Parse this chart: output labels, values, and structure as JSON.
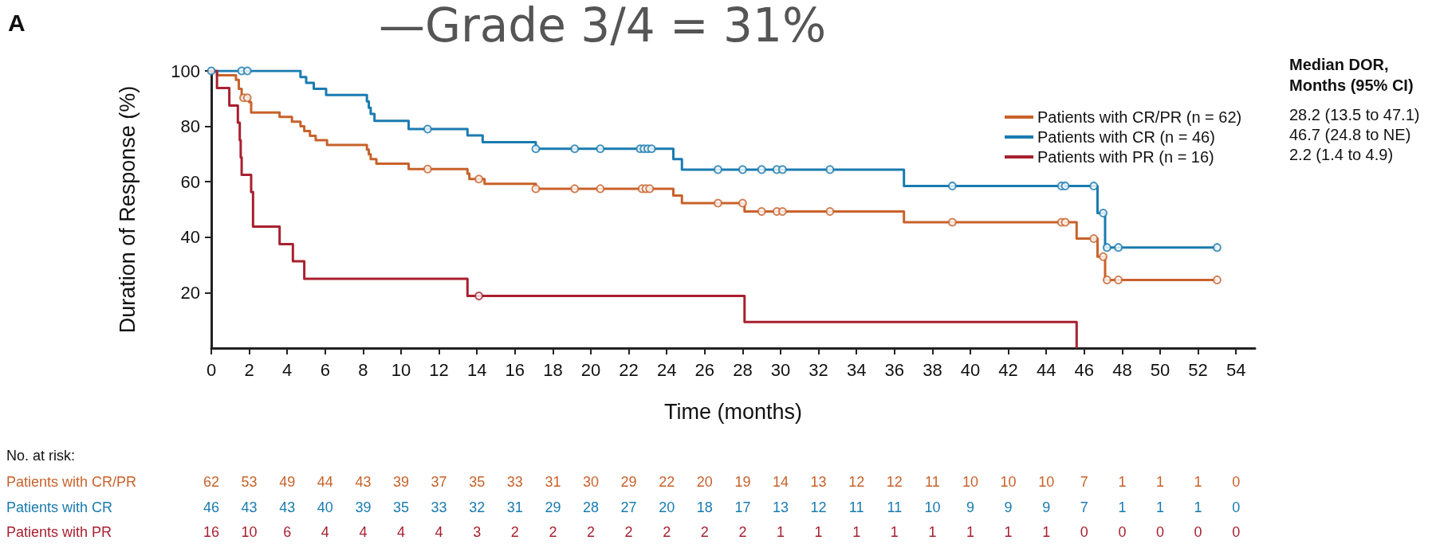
{
  "chart_data": {
    "type": "step",
    "title": "—Grade 3/4 = 31%",
    "xlabel": "Time (months)",
    "ylabel": "Duration of Response (%)",
    "xlim": [
      0,
      55
    ],
    "xticks": [
      0,
      2,
      4,
      6,
      8,
      10,
      12,
      14,
      16,
      18,
      20,
      22,
      24,
      26,
      28,
      30,
      32,
      34,
      36,
      38,
      40,
      42,
      44,
      46,
      48,
      50,
      52,
      54
    ],
    "ylim": [
      0,
      100
    ],
    "yticks": [
      20,
      40,
      60,
      80,
      100
    ],
    "legend": "top right",
    "annotations": [
      "A",
      "Median DOR,\nMonths (95% CI)",
      "28.2 (13.5 to 47.1)",
      "46.7 (24.8 to NE)",
      "2.2 (1.4 to 4.9)",
      "No. at risk:",
      "Patients with CR/PR",
      "Patients with CR",
      "Patients with PR",
      "62 53 49 44 43 39 37 35 33 31 30 29 22 20 19 14 13 12 12 11 10 10 10 7 1 1 1 0",
      "46 43 43 40 39 35 33 32 31 29 28 27 20 18 17 13 12 11 11 10 9 9 9 7 1 1 1 0",
      "16 10 6 4 4 4 4 3 2 2 2 2 2 2 2 1 1 1 1 1 1 1 1 0 0 0 0 0"
    ],
    "series": [
      {
        "name": "Patients with CR/PR (n = 62)",
        "color": "#c8622b",
        "x": [
          0,
          0.3,
          1.3,
          1.45,
          1.6,
          2.0,
          2.1,
          3.6,
          4.25,
          4.7,
          4.9,
          5.2,
          5.5,
          6.1,
          8.2,
          8.3,
          8.4,
          8.7,
          10.4,
          13.5,
          13.6,
          14.4,
          17.1,
          24.35,
          24.8,
          28.1,
          36.5,
          45.6,
          46.7,
          47.1,
          53.0
        ],
        "values": [
          100,
          98.4,
          96.8,
          93.5,
          90.3,
          88.7,
          85.0,
          83.4,
          81.7,
          80.0,
          78.3,
          76.6,
          75.0,
          73.3,
          71.6,
          69.9,
          68.2,
          66.5,
          64.6,
          62.9,
          61.0,
          59.3,
          57.5,
          55.0,
          52.3,
          49.3,
          45.4,
          39.5,
          33.0,
          24.6,
          24.6
        ]
      },
      {
        "name": "Patients with CR (n = 46)",
        "color": "#1a7bb0",
        "x": [
          0,
          4.7,
          5.0,
          5.4,
          6.05,
          8.2,
          8.3,
          8.4,
          8.6,
          10.4,
          13.5,
          14.3,
          17.1,
          24.35,
          24.8,
          36.5,
          46.7,
          47.1,
          53.0
        ],
        "values": [
          100,
          97.8,
          95.7,
          93.5,
          91.3,
          89.0,
          86.7,
          84.5,
          82.0,
          79.0,
          76.7,
          74.3,
          71.9,
          68.2,
          64.4,
          58.5,
          48.7,
          36.3,
          36.3
        ]
      },
      {
        "name": "Patients with PR (n = 16)",
        "color": "#a8202f",
        "x": [
          0,
          0.3,
          0.95,
          1.4,
          1.5,
          1.55,
          1.6,
          2.1,
          2.2,
          3.6,
          4.3,
          4.9,
          13.5,
          28.1,
          45.6
        ],
        "values": [
          100,
          93.8,
          87.5,
          81.3,
          75.0,
          68.8,
          62.5,
          56.3,
          43.8,
          37.5,
          31.3,
          25.0,
          18.8,
          9.4,
          0
        ]
      },
      {
        "type": "scatter",
        "marker": "circle",
        "color": "#c8622b",
        "x": [
          1.7,
          1.9,
          11.4,
          14.1,
          17.1,
          19.15,
          20.5,
          22.7,
          22.9,
          23.1,
          26.7,
          28.0,
          29.0,
          29.8,
          30.1,
          32.6,
          39.05,
          44.8,
          45.0,
          46.5,
          47.0,
          47.2,
          47.8,
          53.0
        ],
        "values": [
          90.3,
          90.3,
          64.6,
          61.0,
          57.5,
          57.5,
          57.5,
          57.5,
          57.5,
          57.5,
          52.3,
          52.3,
          49.3,
          49.3,
          49.3,
          49.3,
          45.4,
          45.4,
          45.4,
          39.5,
          33.0,
          24.6,
          24.6,
          24.6
        ]
      },
      {
        "type": "scatter",
        "marker": "circle",
        "color": "#1a7bb0",
        "x": [
          0,
          1.6,
          1.9,
          11.4,
          17.1,
          19.15,
          20.5,
          22.6,
          22.8,
          23.0,
          23.2,
          26.7,
          28.0,
          29.0,
          29.8,
          30.1,
          32.6,
          39.05,
          44.8,
          45.0,
          46.5,
          47.0,
          47.2,
          47.8,
          53.0
        ],
        "values": [
          100,
          100,
          100,
          79.0,
          71.9,
          71.9,
          71.9,
          71.9,
          71.9,
          71.9,
          71.9,
          64.4,
          64.4,
          64.4,
          64.4,
          64.4,
          64.4,
          58.5,
          58.5,
          58.5,
          58.5,
          48.7,
          36.3,
          36.3,
          36.3
        ]
      },
      {
        "type": "scatter",
        "marker": "circle",
        "color": "#a8202f",
        "x": [
          14.1
        ],
        "values": [
          18.8
        ]
      }
    ]
  }
}
